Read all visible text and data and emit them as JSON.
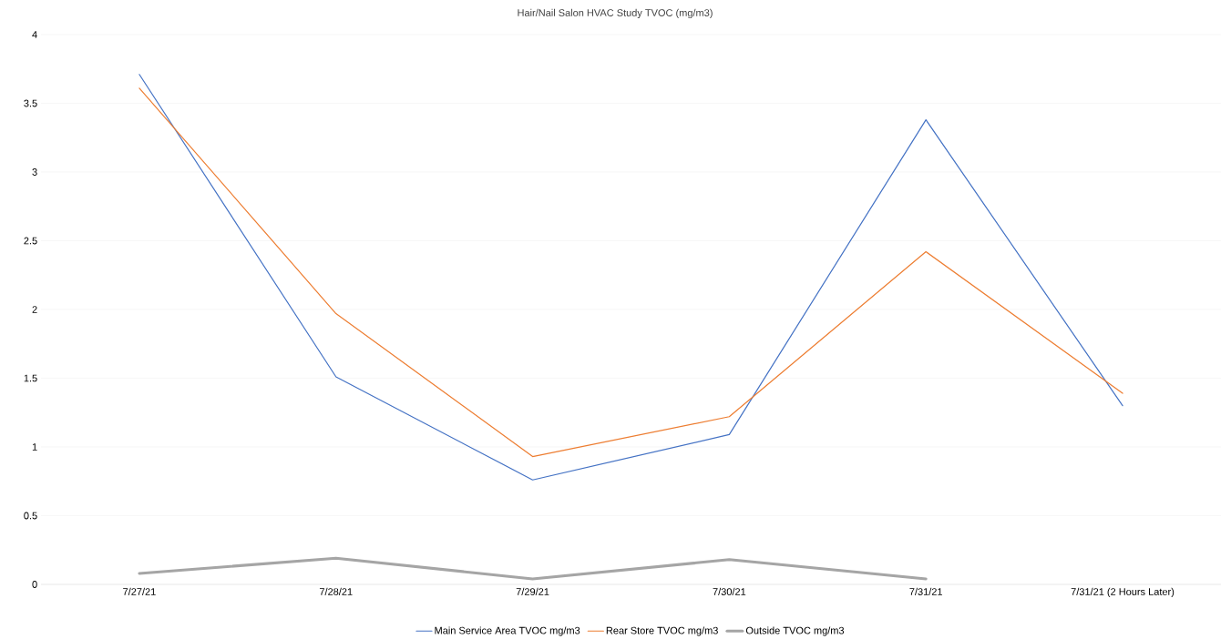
{
  "chart_data": {
    "type": "line",
    "title": "Hair/Nail Salon HVAC Study TVOC (mg/m3)",
    "categories": [
      "7/27/21",
      "7/28/21",
      "7/29/21",
      "7/30/21",
      "7/31/21",
      "7/31/21 (2 Hours Later)"
    ],
    "series": [
      {
        "name": "Main Service Area TVOC mg/m3",
        "color": "#4472c4",
        "values": [
          3.71,
          1.51,
          0.76,
          1.09,
          3.38,
          1.3
        ]
      },
      {
        "name": "Rear Store TVOC mg/m3",
        "color": "#ed7d31",
        "values": [
          3.61,
          1.97,
          0.93,
          1.22,
          2.42,
          1.39
        ]
      },
      {
        "name": "Outside TVOC mg/m3",
        "color": "#a5a5a5",
        "values": [
          0.08,
          0.19,
          0.04,
          0.18,
          0.04,
          null
        ]
      }
    ],
    "ylim": [
      0,
      4
    ],
    "yticks": [
      0,
      0.5,
      1,
      1.5,
      2,
      2.5,
      3,
      3.5,
      4
    ],
    "grid": "y",
    "legend": "bottom",
    "marker": "none",
    "line_style": "solid"
  }
}
